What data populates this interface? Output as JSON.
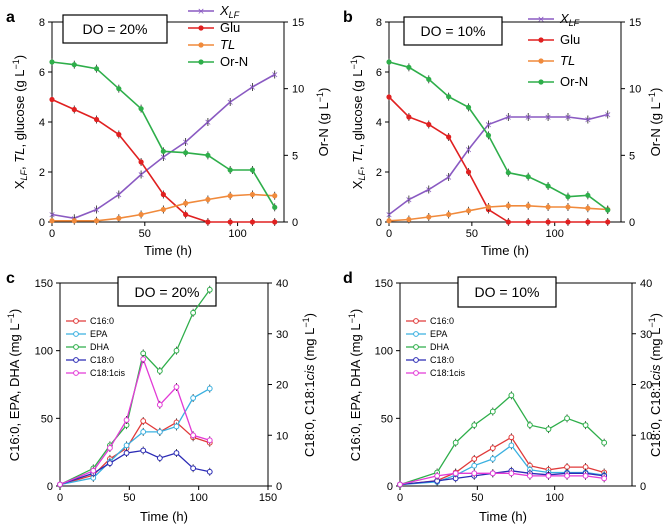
{
  "chart_data": [
    {
      "panel": "a",
      "type": "line",
      "do_label": "DO = 20%",
      "title": "",
      "xlabel": "Time (h)",
      "ylabel_left": "X_LF, TL, glucose (g L⁻¹)",
      "ylabel_right": "Or-N (g L⁻¹)",
      "xlim": [
        0,
        125
      ],
      "xticks": [
        0,
        50,
        100
      ],
      "ylim_left": [
        0,
        8
      ],
      "yticks_left": [
        0,
        2,
        4,
        6,
        8
      ],
      "ylim_right": [
        0,
        15
      ],
      "yticks_right": [
        0,
        5,
        10,
        15
      ],
      "series": [
        {
          "name": "X_LF",
          "color": "#8a5ac2",
          "marker": "x",
          "axis": "left",
          "x": [
            0,
            12,
            24,
            36,
            48,
            60,
            72,
            84,
            96,
            108,
            120
          ],
          "y": [
            0.3,
            0.15,
            0.5,
            1.1,
            1.9,
            2.6,
            3.2,
            4.0,
            4.8,
            5.4,
            5.9
          ]
        },
        {
          "name": "Glu",
          "color": "#e02020",
          "marker": "circle",
          "axis": "left",
          "x": [
            0,
            12,
            24,
            36,
            48,
            60,
            72,
            84,
            96,
            108,
            120
          ],
          "y": [
            4.9,
            4.5,
            4.1,
            3.5,
            2.4,
            1.1,
            0.3,
            0.0,
            0.0,
            0.0,
            0.0
          ]
        },
        {
          "name": "TL",
          "color": "#f08a3c",
          "marker": "circle",
          "axis": "left",
          "x": [
            0,
            12,
            24,
            36,
            48,
            60,
            72,
            84,
            96,
            108,
            120
          ],
          "y": [
            0.05,
            0.05,
            0.05,
            0.15,
            0.3,
            0.5,
            0.75,
            0.9,
            1.05,
            1.1,
            1.05
          ]
        },
        {
          "name": "Or-N",
          "color": "#2eae4a",
          "marker": "circle",
          "axis": "right",
          "x": [
            0,
            12,
            24,
            36,
            48,
            60,
            72,
            84,
            96,
            108,
            120
          ],
          "y": [
            12.0,
            11.8,
            11.5,
            10.0,
            8.5,
            5.3,
            5.2,
            5.0,
            3.9,
            3.9,
            1.1
          ]
        }
      ]
    },
    {
      "panel": "b",
      "type": "line",
      "do_label": "DO = 10%",
      "title": "",
      "xlabel": "Time (h)",
      "ylabel_left": "X_LF, TL, glucose (g L⁻¹)",
      "ylabel_right": "Or-N (g L⁻¹)",
      "xlim": [
        0,
        140
      ],
      "xticks": [
        0,
        50,
        100
      ],
      "ylim_left": [
        0,
        8
      ],
      "yticks_left": [
        0,
        2,
        4,
        6,
        8
      ],
      "ylim_right": [
        0,
        15
      ],
      "yticks_right": [
        0,
        5,
        10,
        15
      ],
      "series": [
        {
          "name": "X_LF",
          "color": "#8a5ac2",
          "marker": "x",
          "axis": "left",
          "x": [
            0,
            12,
            24,
            36,
            48,
            60,
            72,
            84,
            96,
            108,
            120,
            132
          ],
          "y": [
            0.3,
            0.9,
            1.3,
            1.8,
            2.9,
            3.9,
            4.2,
            4.2,
            4.2,
            4.2,
            4.1,
            4.3
          ]
        },
        {
          "name": "Glu",
          "color": "#e02020",
          "marker": "circle",
          "axis": "left",
          "x": [
            0,
            12,
            24,
            36,
            48,
            60,
            72,
            84,
            96,
            108,
            120,
            132
          ],
          "y": [
            5.0,
            4.2,
            3.9,
            3.4,
            2.0,
            0.5,
            0.0,
            0.0,
            0.0,
            0.0,
            0.0,
            0.0
          ]
        },
        {
          "name": "TL",
          "color": "#f08a3c",
          "marker": "circle",
          "axis": "left",
          "x": [
            0,
            12,
            24,
            36,
            48,
            60,
            72,
            84,
            96,
            108,
            120,
            132
          ],
          "y": [
            0.05,
            0.1,
            0.2,
            0.3,
            0.45,
            0.6,
            0.65,
            0.65,
            0.6,
            0.6,
            0.55,
            0.5
          ]
        },
        {
          "name": "Or-N",
          "color": "#2eae4a",
          "marker": "circle",
          "axis": "right",
          "x": [
            0,
            12,
            24,
            36,
            48,
            60,
            72,
            84,
            96,
            108,
            120,
            132
          ],
          "y": [
            12.0,
            11.6,
            10.7,
            9.4,
            8.6,
            6.5,
            3.7,
            3.4,
            2.7,
            1.9,
            2.0,
            0.9
          ]
        }
      ]
    },
    {
      "panel": "c",
      "type": "line",
      "do_label": "DO = 20%",
      "title": "",
      "xlabel": "Time (h)",
      "ylabel_left": "C16:0, EPA, DHA (mg L⁻¹)",
      "ylabel_right": "C18:0, C18:1cis (mg L⁻¹)",
      "xlim": [
        0,
        150
      ],
      "xticks": [
        0,
        50,
        100,
        150
      ],
      "ylim_left": [
        0,
        150
      ],
      "yticks_left": [
        0,
        50,
        100,
        150
      ],
      "ylim_right": [
        0,
        40
      ],
      "yticks_right": [
        0,
        10,
        20,
        30,
        40
      ],
      "series": [
        {
          "name": "C16:0",
          "color": "#e03a3a",
          "axis": "left",
          "x": [
            0,
            24,
            36,
            48,
            60,
            72,
            84,
            96,
            108
          ],
          "y": [
            1,
            8,
            20,
            28,
            48,
            40,
            47,
            36,
            32
          ]
        },
        {
          "name": "EPA",
          "color": "#3ab0e0",
          "axis": "left",
          "x": [
            0,
            24,
            36,
            48,
            60,
            72,
            84,
            96,
            108
          ],
          "y": [
            1,
            6,
            18,
            30,
            40,
            40,
            44,
            65,
            72
          ]
        },
        {
          "name": "DHA",
          "color": "#2eae4a",
          "axis": "left",
          "x": [
            0,
            24,
            36,
            48,
            60,
            72,
            84,
            96,
            108
          ],
          "y": [
            1,
            13,
            30,
            45,
            98,
            85,
            100,
            128,
            145
          ]
        },
        {
          "name": "C18:0",
          "color": "#2b2bb5",
          "axis": "right",
          "x": [
            0,
            24,
            36,
            48,
            60,
            72,
            84,
            96,
            108
          ],
          "y": [
            0.3,
            2.5,
            4.5,
            6.5,
            7.0,
            5.5,
            6.5,
            3.5,
            2.8
          ]
        },
        {
          "name": "C18:1cis",
          "color": "#e23ad6",
          "axis": "right",
          "x": [
            0,
            24,
            36,
            48,
            60,
            72,
            84,
            96,
            108
          ],
          "y": [
            0.3,
            3,
            7.5,
            13,
            25,
            16,
            19.5,
            10,
            9
          ]
        }
      ]
    },
    {
      "panel": "d",
      "type": "line",
      "do_label": "DO = 10%",
      "title": "",
      "xlabel": "Time (h)",
      "ylabel_left": "C16:0, EPA, DHA (mg L⁻¹)",
      "ylabel_right": "C18:0, C18:1cis (mg L⁻¹)",
      "xlim": [
        0,
        150
      ],
      "xticks": [
        0,
        50,
        100
      ],
      "ylim_left": [
        0,
        150
      ],
      "yticks_left": [
        0,
        50,
        100,
        150
      ],
      "ylim_right": [
        0,
        40
      ],
      "yticks_right": [
        0,
        10,
        20,
        30,
        40
      ],
      "series": [
        {
          "name": "C16:0",
          "color": "#e03a3a",
          "axis": "left",
          "x": [
            0,
            24,
            36,
            48,
            60,
            72,
            84,
            96,
            108,
            120,
            132
          ],
          "y": [
            1,
            4,
            10,
            20,
            28,
            36,
            15,
            12,
            14,
            14,
            10
          ]
        },
        {
          "name": "EPA",
          "color": "#3ab0e0",
          "axis": "left",
          "x": [
            0,
            24,
            36,
            48,
            60,
            72,
            84,
            96,
            108,
            120,
            132
          ],
          "y": [
            1,
            3,
            8,
            15,
            20,
            30,
            12,
            10,
            10,
            10,
            8
          ]
        },
        {
          "name": "DHA",
          "color": "#2eae4a",
          "axis": "left",
          "x": [
            0,
            24,
            36,
            48,
            60,
            72,
            84,
            96,
            108,
            120,
            132
          ],
          "y": [
            1,
            10,
            32,
            45,
            55,
            67,
            45,
            42,
            50,
            45,
            32
          ]
        },
        {
          "name": "C18:0",
          "color": "#2b2bb5",
          "axis": "right",
          "x": [
            0,
            24,
            36,
            48,
            60,
            72,
            84,
            96,
            108,
            120,
            132
          ],
          "y": [
            0.3,
            1,
            1.5,
            2,
            2.5,
            3,
            2.5,
            2.2,
            2.5,
            2.5,
            2
          ]
        },
        {
          "name": "C18:1cis",
          "color": "#e23ad6",
          "axis": "right",
          "x": [
            0,
            24,
            36,
            48,
            60,
            72,
            84,
            96,
            108,
            120,
            132
          ],
          "y": [
            0.3,
            2,
            2.5,
            2.5,
            2.5,
            2.5,
            2,
            2,
            2,
            2,
            1.5
          ]
        }
      ]
    }
  ]
}
